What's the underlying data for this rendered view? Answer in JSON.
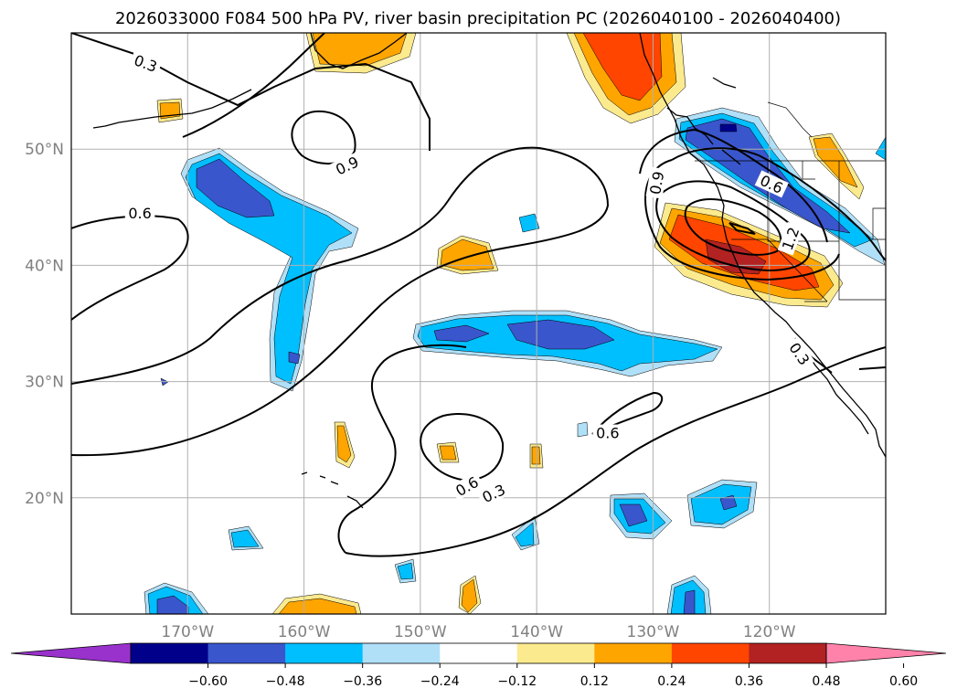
{
  "chart_data": {
    "type": "map-contour",
    "title": "2026033000 F084 500 hPa PV, river basin precipitation PC (2026040100 - 2026040400)",
    "lon_range": [
      -180,
      -110
    ],
    "lat_range": [
      10,
      60
    ],
    "lon_ticks": [
      {
        "value": -170,
        "label": "170°W"
      },
      {
        "value": -160,
        "label": "160°W"
      },
      {
        "value": -150,
        "label": "150°W"
      },
      {
        "value": -140,
        "label": "140°W"
      },
      {
        "value": -130,
        "label": "130°W"
      },
      {
        "value": -120,
        "label": "120°W"
      }
    ],
    "lat_ticks": [
      {
        "value": 50,
        "label": "50°N"
      },
      {
        "value": 40,
        "label": "40°N"
      },
      {
        "value": 30,
        "label": "30°N"
      },
      {
        "value": 20,
        "label": "20°N"
      }
    ],
    "contour_labels": [
      {
        "text": "0.3",
        "lon": -173.6,
        "lat": 57.4,
        "rot": 20
      },
      {
        "text": "0.6",
        "lon": -174.1,
        "lat": 44.5,
        "rot": 0
      },
      {
        "text": "0.9",
        "lon": -156.3,
        "lat": 48.6,
        "rot": -25
      },
      {
        "text": "0.9",
        "lon": -129.7,
        "lat": 47.1,
        "rot": -80
      },
      {
        "text": "0.6",
        "lon": -119.8,
        "lat": 47.0,
        "rot": 25
      },
      {
        "text": "1.2",
        "lon": -118.2,
        "lat": 42.3,
        "rot": -70
      },
      {
        "text": "0.3",
        "lon": -117.4,
        "lat": 32.4,
        "rot": 55
      },
      {
        "text": "0.6",
        "lon": -133.9,
        "lat": 25.6,
        "rot": 0
      },
      {
        "text": "0.6",
        "lon": -146.0,
        "lat": 21.0,
        "rot": -30
      },
      {
        "text": "0.3",
        "lon": -143.7,
        "lat": 20.4,
        "rot": -25
      }
    ],
    "colorbar": {
      "ticks": [
        "-0.60",
        "-0.48",
        "-0.36",
        "-0.24",
        "-0.12",
        "0.12",
        "0.24",
        "0.36",
        "0.48",
        "0.60"
      ],
      "colors": [
        "#9932cc",
        "#00008b",
        "#3a56cd",
        "#00bfff",
        "#b0e0f8",
        "#ffffff",
        "#fcea8e",
        "#ffa500",
        "#ff4500",
        "#b22222",
        "#ff82aa"
      ]
    },
    "anomaly_colors": {
      "neg_light": "#b0e0f8",
      "neg_mid": "#00bfff",
      "neg_dark": "#3a56cd",
      "neg_deep": "#00008b",
      "pos_light": "#fcea8e",
      "pos_mid": "#ffa500",
      "pos_dark": "#ff4500",
      "pos_deep": "#b22222"
    }
  }
}
